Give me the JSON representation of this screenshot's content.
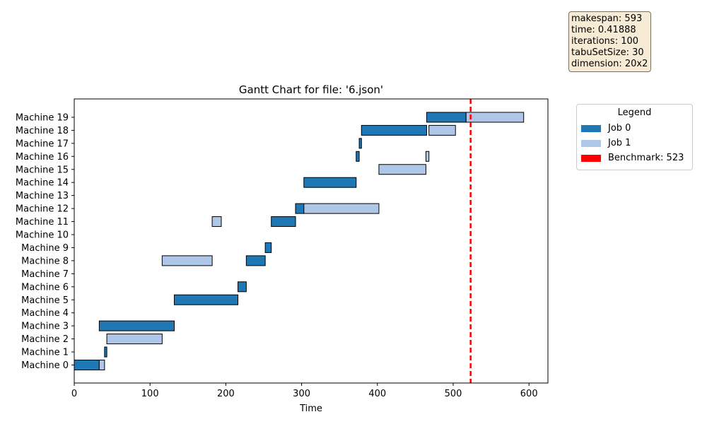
{
  "info_box": {
    "lines": [
      "makespan: 593",
      "time: 0.41888",
      "iterations: 100",
      "tabuSetSize: 30",
      "dimension: 20x2"
    ]
  },
  "legend": {
    "title": "Legend",
    "entries": [
      {
        "label": "Job 0",
        "color": "#1f77b4"
      },
      {
        "label": "Job 1",
        "color": "#aec7e8"
      },
      {
        "label": "Benchmark: 523",
        "color": "#ff0000"
      }
    ]
  },
  "chart_data": {
    "type": "gantt",
    "title": "Gantt Chart for file: '6.json'",
    "xlabel": "Time",
    "ylabel": "",
    "xlim": [
      0,
      625
    ],
    "xticks": [
      0,
      100,
      200,
      300,
      400,
      500,
      600
    ],
    "machines": [
      "Machine 0",
      "Machine 1",
      "Machine 2",
      "Machine 3",
      "Machine 4",
      "Machine 5",
      "Machine 6",
      "Machine 7",
      "Machine 8",
      "Machine 9",
      "Machine 10",
      "Machine 11",
      "Machine 12",
      "Machine 13",
      "Machine 14",
      "Machine 15",
      "Machine 16",
      "Machine 17",
      "Machine 18",
      "Machine 19"
    ],
    "job_colors": {
      "0": "#1f77b4",
      "1": "#aec7e8"
    },
    "benchmark": {
      "value": 523,
      "color": "#ff0000"
    },
    "tasks": [
      {
        "machine": 0,
        "job": 0,
        "start": 0,
        "end": 33
      },
      {
        "machine": 0,
        "job": 1,
        "start": 33,
        "end": 40
      },
      {
        "machine": 1,
        "job": 0,
        "start": 40,
        "end": 43
      },
      {
        "machine": 2,
        "job": 1,
        "start": 43,
        "end": 116
      },
      {
        "machine": 3,
        "job": 0,
        "start": 33,
        "end": 132
      },
      {
        "machine": 5,
        "job": 0,
        "start": 132,
        "end": 216
      },
      {
        "machine": 6,
        "job": 0,
        "start": 216,
        "end": 227
      },
      {
        "machine": 8,
        "job": 1,
        "start": 116,
        "end": 182
      },
      {
        "machine": 8,
        "job": 0,
        "start": 227,
        "end": 252
      },
      {
        "machine": 9,
        "job": 0,
        "start": 252,
        "end": 260
      },
      {
        "machine": 11,
        "job": 1,
        "start": 182,
        "end": 194
      },
      {
        "machine": 11,
        "job": 0,
        "start": 260,
        "end": 292
      },
      {
        "machine": 12,
        "job": 0,
        "start": 292,
        "end": 303
      },
      {
        "machine": 12,
        "job": 1,
        "start": 303,
        "end": 402
      },
      {
        "machine": 14,
        "job": 0,
        "start": 303,
        "end": 372
      },
      {
        "machine": 15,
        "job": 1,
        "start": 402,
        "end": 464
      },
      {
        "machine": 16,
        "job": 0,
        "start": 372,
        "end": 376
      },
      {
        "machine": 16,
        "job": 1,
        "start": 464,
        "end": 468
      },
      {
        "machine": 17,
        "job": 0,
        "start": 376,
        "end": 379
      },
      {
        "machine": 18,
        "job": 0,
        "start": 379,
        "end": 465
      },
      {
        "machine": 18,
        "job": 1,
        "start": 468,
        "end": 503
      },
      {
        "machine": 19,
        "job": 0,
        "start": 465,
        "end": 517
      },
      {
        "machine": 19,
        "job": 1,
        "start": 517,
        "end": 593
      }
    ]
  }
}
